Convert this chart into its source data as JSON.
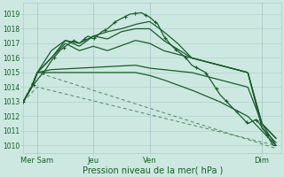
{
  "background_color": "#cce8e0",
  "grid_color": "#aacccc",
  "line_color_dark": "#1a5c2a",
  "line_color_med": "#2d7a3a",
  "ylabel_ticks": [
    1010,
    1011,
    1012,
    1013,
    1014,
    1015,
    1016,
    1017,
    1018,
    1019
  ],
  "ylim": [
    1009.5,
    1019.8
  ],
  "xlabel": "Pression niveau de la mer( hPa )",
  "x_tick_labels": [
    "Mer Sam",
    "Jeu",
    "Ven",
    "Dim"
  ],
  "x_tick_positions": [
    0.5,
    2.5,
    4.5,
    8.5
  ],
  "xlim": [
    0,
    9.2
  ],
  "n_points": 200
}
